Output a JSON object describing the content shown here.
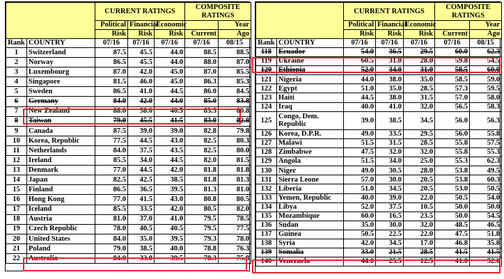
{
  "colors": {
    "header_bg": "#ffff99",
    "group_text": "#7b2d7b",
    "col_text": "#2b3f8c",
    "highlight": "#e8242c"
  },
  "header": {
    "current_ratings": "CURRENT RATINGS",
    "composite_ratings": "COMPOSITE RATINGS",
    "political": "Political",
    "financial": "Financial",
    "economic": "Economic",
    "risk": "Risk",
    "current": "Current",
    "year": "Year",
    "ago": "Ago",
    "rank": "Rank",
    "country": "COUNTRY",
    "date_cur": "07/16",
    "date_ago": "08/15"
  },
  "left_table": {
    "rows": [
      {
        "rank": "1",
        "country": "Switzerland",
        "pol": "87.5",
        "fin": "45.5",
        "eco": "44.0",
        "cur": "88.5",
        "ago": "88.5"
      },
      {
        "rank": "2",
        "country": "Norway",
        "pol": "86.5",
        "fin": "45.5",
        "eco": "44.0",
        "cur": "88.0",
        "ago": "87.0"
      },
      {
        "rank": "3",
        "country": "Luxembourg",
        "pol": "87.0",
        "fin": "42.0",
        "eco": "45.0",
        "cur": "87.0",
        "ago": "85.5"
      },
      {
        "rank": "4",
        "country": "Singapore",
        "pol": "81.5",
        "fin": "46.0",
        "eco": "45.0",
        "cur": "86.3",
        "ago": "85.3"
      },
      {
        "rank": "5",
        "country": "Sweden",
        "pol": "86.5",
        "fin": "41.0",
        "eco": "44.5",
        "cur": "86.0",
        "ago": "84.5"
      },
      {
        "rank": "6",
        "country": "Germany",
        "pol": "84.0",
        "fin": "42.0",
        "eco": "44.0",
        "cur": "85.0",
        "ago": "83.8"
      },
      {
        "rank": "7",
        "country": "New Zealand",
        "pol": "88.0",
        "fin": "38.0",
        "eco": "40.5",
        "cur": "83.3",
        "ago": "80.8"
      },
      {
        "rank": "8",
        "country": "Taiwan",
        "pol": "79.0",
        "fin": "45.5",
        "eco": "41.5",
        "cur": "83.0",
        "ago": "82.8"
      },
      {
        "rank": "9",
        "country": "Canada",
        "pol": "87.5",
        "fin": "39.0",
        "eco": "39.0",
        "cur": "82.8",
        "ago": "79.8"
      },
      {
        "rank": "10",
        "country": "Korea, Republic",
        "pol": "77.5",
        "fin": "44.5",
        "eco": "43.0",
        "cur": "82.5",
        "ago": "80.3"
      },
      {
        "rank": "11",
        "country": "Netherlands",
        "pol": "84.0",
        "fin": "37.5",
        "eco": "43.5",
        "cur": "82.5",
        "ago": "80.0"
      },
      {
        "rank": "12",
        "country": "Ireland",
        "pol": "85.5",
        "fin": "34.0",
        "eco": "44.5",
        "cur": "82.0",
        "ago": "81.5"
      },
      {
        "rank": "13",
        "country": "Denmark",
        "pol": "77.0",
        "fin": "44.5",
        "eco": "42.0",
        "cur": "81.8",
        "ago": "81.8"
      },
      {
        "rank": "14",
        "country": "Japan",
        "pol": "82.5",
        "fin": "42.5",
        "eco": "38.5",
        "cur": "81.8",
        "ago": "81.3"
      },
      {
        "rank": "15",
        "country": "Finland",
        "pol": "86.5",
        "fin": "36.5",
        "eco": "39.5",
        "cur": "81.3",
        "ago": "81.0"
      },
      {
        "rank": "16",
        "country": "Hong Kong",
        "pol": "77.0",
        "fin": "41.5",
        "eco": "43.0",
        "cur": "80.8",
        "ago": "80.5"
      },
      {
        "rank": "17",
        "country": "Iceland",
        "pol": "85.5",
        "fin": "33.5",
        "eco": "42.0",
        "cur": "80.5",
        "ago": "82.0"
      },
      {
        "rank": "18",
        "country": "Austria",
        "pol": "81.0",
        "fin": "37.0",
        "eco": "41.0",
        "cur": "79.5",
        "ago": "78.5"
      },
      {
        "rank": "19",
        "country": "Czech Republic",
        "pol": "78.0",
        "fin": "40.5",
        "eco": "40.5",
        "cur": "79.5",
        "ago": "77.5"
      },
      {
        "rank": "20",
        "country": "United States",
        "pol": "84.0",
        "fin": "35.0",
        "eco": "39.5",
        "cur": "79.3",
        "ago": "78.0"
      },
      {
        "rank": "21",
        "country": "Poland",
        "pol": "79.0",
        "fin": "38.5",
        "eco": "40.0",
        "cur": "78.8",
        "ago": "76.3"
      },
      {
        "rank": "22",
        "country": "Australia",
        "pol": "84.0",
        "fin": "33.0",
        "eco": "39.5",
        "cur": "78.3",
        "ago": "75.8"
      }
    ]
  },
  "right_table": {
    "rows": [
      {
        "rank": "118",
        "country": "Ecuador",
        "pol": "54.0",
        "fin": "36.5",
        "eco": "29.5",
        "cur": "60.0",
        "ago": "62.3"
      },
      {
        "rank": "119",
        "country": "Ukraine",
        "pol": "60.5",
        "fin": "31.0",
        "eco": "28.0",
        "cur": "59.8",
        "ago": "54.5"
      },
      {
        "rank": "120",
        "country": "Ethiopia",
        "pol": "52.0",
        "fin": "34.0",
        "eco": "31.0",
        "cur": "58.5",
        "ago": "60.0"
      },
      {
        "rank": "121",
        "country": "Nigeria",
        "pol": "44.0",
        "fin": "38.0",
        "eco": "35.0",
        "cur": "58.5",
        "ago": "59.0"
      },
      {
        "rank": "122",
        "country": "Egypt",
        "pol": "51.0",
        "fin": "35.0",
        "eco": "28.5",
        "cur": "57.3",
        "ago": "59.5"
      },
      {
        "rank": "123",
        "country": "Haiti",
        "pol": "44.5",
        "fin": "38.0",
        "eco": "31.5",
        "cur": "57.0",
        "ago": "58.0"
      },
      {
        "rank": "124",
        "country": "Iraq",
        "pol": "40.0",
        "fin": "41.0",
        "eco": "32.0",
        "cur": "56.5",
        "ago": "58.3"
      },
      {
        "rank": "125",
        "country": "Congo, Dem. Republic",
        "pol": "39.0",
        "fin": "38.5",
        "eco": "34.5",
        "cur": "56.0",
        "ago": "56.3"
      },
      {
        "rank": "126",
        "country": "Korea, D.P.R.",
        "pol": "49.0",
        "fin": "33.5",
        "eco": "29.5",
        "cur": "56.0",
        "ago": "55.8"
      },
      {
        "rank": "127",
        "country": "Malawi",
        "pol": "51.5",
        "fin": "31.5",
        "eco": "28.5",
        "cur": "55.8",
        "ago": "57.5"
      },
      {
        "rank": "128",
        "country": "Zimbabwe",
        "pol": "47.5",
        "fin": "32.0",
        "eco": "32.0",
        "cur": "55.8",
        "ago": "55.3"
      },
      {
        "rank": "129",
        "country": "Angola",
        "pol": "51.5",
        "fin": "34.0",
        "eco": "25.0",
        "cur": "55.3",
        "ago": "62.3"
      },
      {
        "rank": "130",
        "country": "Niger",
        "pol": "49.0",
        "fin": "30.5",
        "eco": "28.0",
        "cur": "53.8",
        "ago": "49.5"
      },
      {
        "rank": "131",
        "country": "Sierra Leone",
        "pol": "57.0",
        "fin": "30.0",
        "eco": "20.5",
        "cur": "53.8",
        "ago": "60.3"
      },
      {
        "rank": "132",
        "country": "Liberia",
        "pol": "51.0",
        "fin": "34.5",
        "eco": "20.5",
        "cur": "53.0",
        "ago": "50.5"
      },
      {
        "rank": "133",
        "country": "Yemen, Republic",
        "pol": "40.0",
        "fin": "39.0",
        "eco": "22.0",
        "cur": "50.5",
        "ago": "54.0"
      },
      {
        "rank": "134",
        "country": "Libya",
        "pol": "52.0",
        "fin": "37.5",
        "eco": "10.5",
        "cur": "50.0",
        "ago": "50.0"
      },
      {
        "rank": "135",
        "country": "Mozambique",
        "pol": "60.0",
        "fin": "16.5",
        "eco": "23.5",
        "cur": "50.0",
        "ago": "54.5"
      },
      {
        "rank": "136",
        "country": "Sudan",
        "pol": "35.0",
        "fin": "30.0",
        "eco": "32.0",
        "cur": "48.5",
        "ago": "46.5"
      },
      {
        "rank": "137",
        "country": "Guinea",
        "pol": "50.5",
        "fin": "22.5",
        "eco": "22.0",
        "cur": "47.5",
        "ago": "51.8"
      },
      {
        "rank": "138",
        "country": "Syria",
        "pol": "42.0",
        "fin": "34.5",
        "eco": "17.0",
        "cur": "46.8",
        "ago": "35.8"
      },
      {
        "rank": "139",
        "country": "Somalia",
        "pol": "33.0",
        "fin": "21.5",
        "eco": "28.5",
        "cur": "41.5",
        "ago": "41.5"
      },
      {
        "rank": "140",
        "country": "Venezuela",
        "pol": "44.0",
        "fin": "25.5",
        "eco": "12.5",
        "cur": "41.0",
        "ago": "52.0"
      }
    ]
  }
}
